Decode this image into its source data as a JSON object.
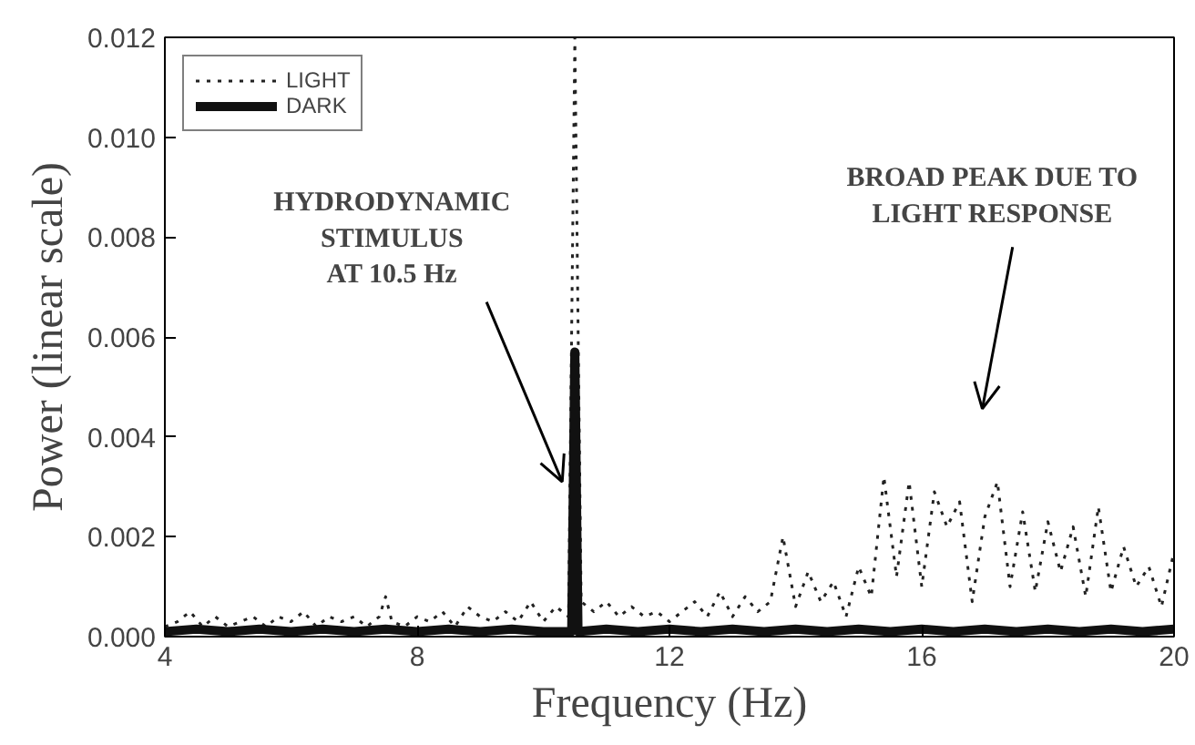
{
  "chart_data": {
    "type": "line",
    "xlabel": "Frequency (Hz)",
    "ylabel": "Power (linear scale)",
    "xlim": [
      4,
      20
    ],
    "xticks": [
      4,
      8,
      12,
      16,
      20
    ],
    "ylim": [
      0,
      0.012
    ],
    "yticks": [
      {
        "value": 0,
        "label": "0.000"
      },
      {
        "value": 0.002,
        "label": "0.002"
      },
      {
        "value": 0.004,
        "label": "0.004"
      },
      {
        "value": 0.006,
        "label": "0.006"
      },
      {
        "value": 0.008,
        "label": "0.008"
      },
      {
        "value": 0.01,
        "label": "0.010"
      },
      {
        "value": 0.012,
        "label": "0.012"
      }
    ],
    "grid": false,
    "legend": "top left",
    "marker": "none",
    "annotations": [
      {
        "text": "HYDRODYNAMIC\nSTIMULUS\nAT 10.5 Hz",
        "x": 10.3,
        "y": 0.0031
      },
      "BROAD PEAK DUE TO\nLIGHT RESPONSE"
    ],
    "series": [
      {
        "name": "LIGHT",
        "color": "#222222",
        "line_style": "dotted",
        "x": [
          4.0,
          4.2,
          4.4,
          4.6,
          4.8,
          5.0,
          5.2,
          5.4,
          5.6,
          5.8,
          6.0,
          6.2,
          6.4,
          6.6,
          6.8,
          7.0,
          7.2,
          7.4,
          7.5,
          7.6,
          7.8,
          8.0,
          8.2,
          8.4,
          8.6,
          8.8,
          9.0,
          9.2,
          9.4,
          9.6,
          9.8,
          10.0,
          10.2,
          10.4,
          10.5,
          10.6,
          10.8,
          11.0,
          11.2,
          11.4,
          11.6,
          11.8,
          12.0,
          12.2,
          12.4,
          12.6,
          12.8,
          13.0,
          13.2,
          13.4,
          13.6,
          13.8,
          14.0,
          14.2,
          14.4,
          14.6,
          14.8,
          15.0,
          15.2,
          15.4,
          15.6,
          15.8,
          16.0,
          16.2,
          16.4,
          16.6,
          16.8,
          17.0,
          17.2,
          17.4,
          17.6,
          17.8,
          18.0,
          18.2,
          18.4,
          18.6,
          18.8,
          19.0,
          19.2,
          19.4,
          19.6,
          19.8,
          20.0
        ],
        "values": [
          0.0002,
          0.0003,
          0.0005,
          0.0002,
          0.0004,
          0.0002,
          0.0003,
          0.0004,
          0.0002,
          0.0004,
          0.0003,
          0.0005,
          0.0002,
          0.0004,
          0.0003,
          0.0004,
          0.0002,
          0.0004,
          0.0008,
          0.0003,
          0.0002,
          0.0004,
          0.0003,
          0.0005,
          0.0002,
          0.0006,
          0.0004,
          0.0003,
          0.0005,
          0.0003,
          0.0007,
          0.0003,
          0.0006,
          0.0004,
          0.012,
          0.0007,
          0.0005,
          0.0007,
          0.0004,
          0.0006,
          0.0004,
          0.0005,
          0.0003,
          0.0005,
          0.0007,
          0.0004,
          0.0009,
          0.0004,
          0.0008,
          0.0005,
          0.0007,
          0.002,
          0.0006,
          0.0013,
          0.0007,
          0.0011,
          0.0004,
          0.0014,
          0.0008,
          0.0032,
          0.0012,
          0.0031,
          0.001,
          0.0029,
          0.0022,
          0.0027,
          0.0007,
          0.0024,
          0.0031,
          0.001,
          0.0025,
          0.0009,
          0.0023,
          0.0013,
          0.0022,
          0.0008,
          0.0026,
          0.0009,
          0.0018,
          0.001,
          0.0014,
          0.0006,
          0.0017
        ]
      },
      {
        "name": "DARK",
        "color": "#111111",
        "line_style": "solid",
        "x": [
          4.0,
          4.5,
          5.0,
          5.5,
          6.0,
          6.5,
          7.0,
          7.5,
          8.0,
          8.5,
          9.0,
          9.5,
          10.0,
          10.45,
          10.5,
          10.55,
          11.0,
          11.5,
          12.0,
          12.5,
          13.0,
          13.5,
          14.0,
          14.5,
          15.0,
          15.5,
          16.0,
          16.5,
          17.0,
          17.5,
          18.0,
          18.5,
          19.0,
          19.5,
          20.0
        ],
        "values": [
          0.0001,
          0.00015,
          0.0001,
          0.00015,
          0.0001,
          0.00015,
          0.0001,
          0.00015,
          0.0001,
          0.00015,
          0.0001,
          0.00015,
          0.0001,
          0.0001,
          0.0057,
          0.0001,
          0.00015,
          0.0001,
          0.00015,
          0.0001,
          0.00015,
          0.0001,
          0.00015,
          0.0001,
          0.00015,
          0.0001,
          0.00015,
          0.0001,
          0.00015,
          0.0001,
          0.00015,
          0.0001,
          0.00015,
          0.0001,
          0.00015
        ]
      }
    ]
  }
}
